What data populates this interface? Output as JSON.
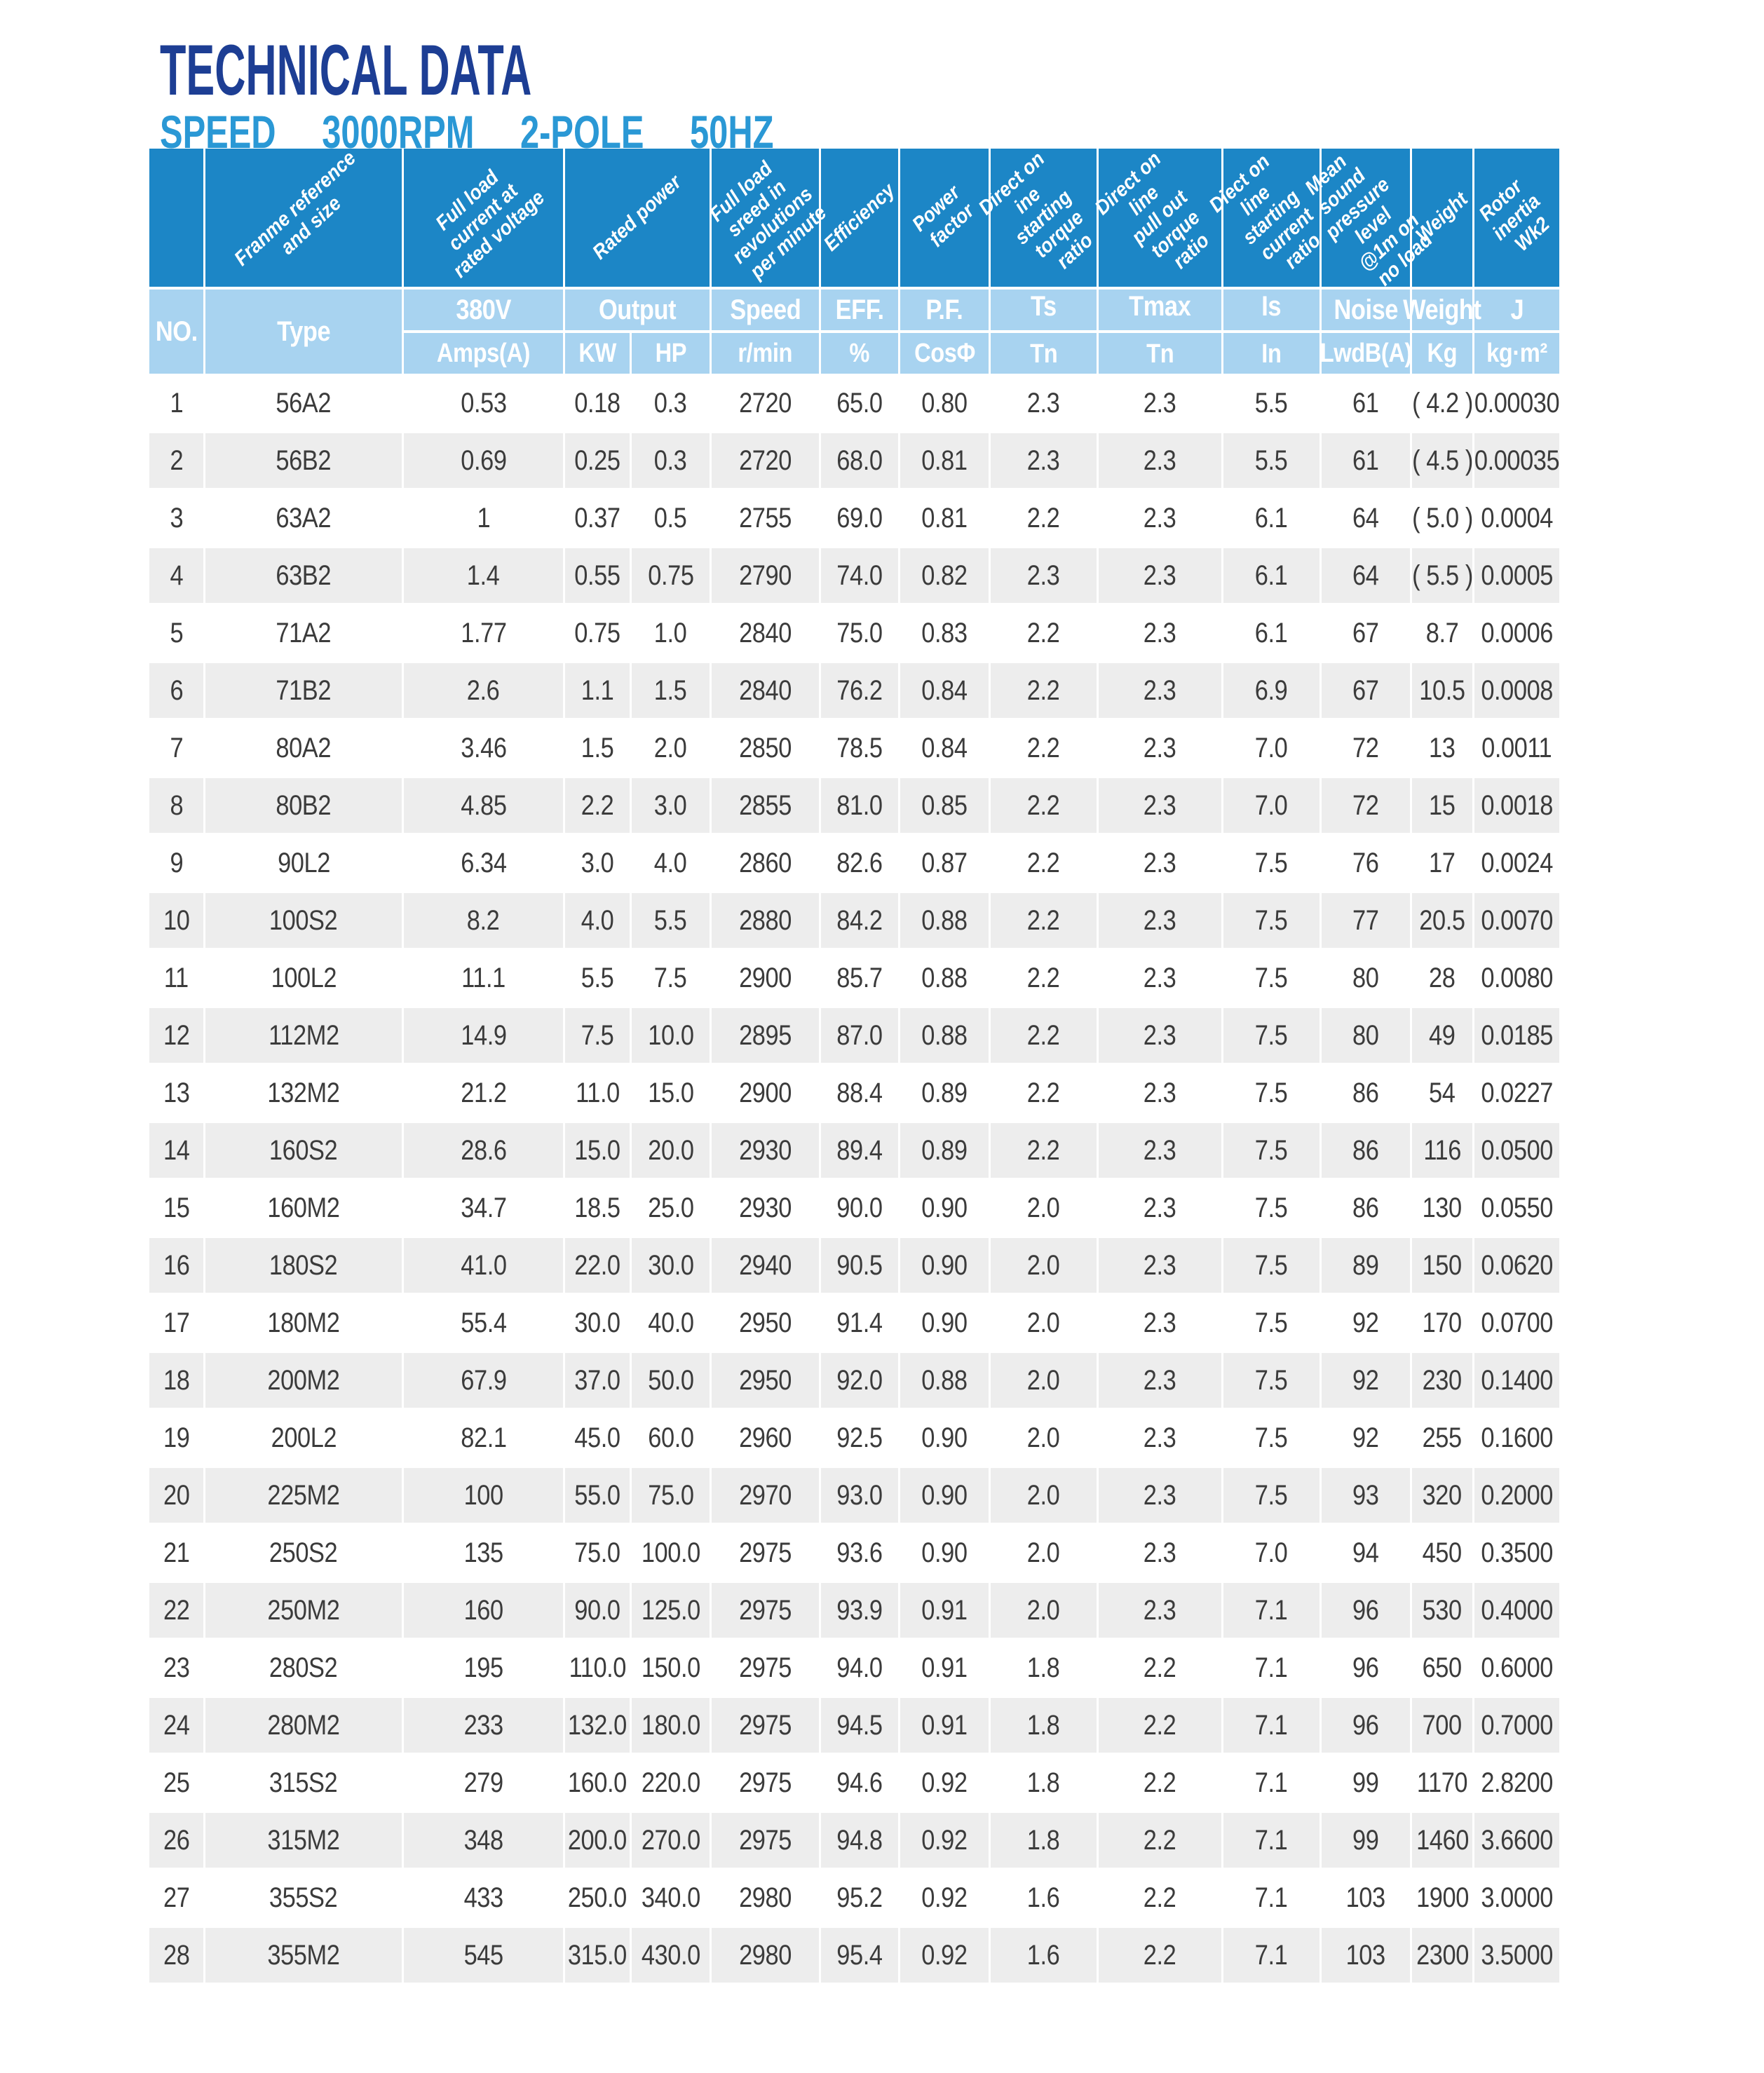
{
  "title": "TECHNICAL DATA",
  "subtitle": "SPEED  3000RPM  2-POLE  50HZ",
  "colors": {
    "header_dark_blue": "#1c86c6",
    "header_light_blue": "#a8d3f0",
    "row_alt_gray": "#ededed",
    "title_navy": "#1d3e94",
    "subtitle_blue": "#2a98d5"
  },
  "table": {
    "diagonal_headers": {
      "type": "Franme reference\nand size",
      "amps": "Full load current at\nrated voltage",
      "output": "Rated power",
      "speed": "Full load sreed in\nrevolutions\nper minute",
      "eff": "Efficiency",
      "pf": "Power factor",
      "ts": "Direct on ine\nstarting torque\nratio",
      "tmax": "Direct on line\npull out torque\nratio",
      "is": "Diect on line\nstarting current\nratio",
      "noise": "Mean sound\npressure\nlevel @1m on\nno load",
      "weight": "Weight",
      "j": "Rotor inertia Wk2"
    },
    "subheaders": {
      "no": "NO.",
      "type": "Type",
      "v380": "380V",
      "amps_unit": "Amps(A)",
      "output": "Output",
      "kw": "KW",
      "hp": "HP",
      "speed": "Speed",
      "speed_unit": "r/min",
      "eff": "EFF.",
      "eff_unit": "%",
      "pf": "P.F.",
      "pf_unit": "CosΦ",
      "ts": "Ts",
      "ts_unit": "Tn",
      "tmax": "Tmax",
      "tmax_unit": "Tn",
      "is": "Is",
      "is_unit": "In",
      "noise": "Noise",
      "noise_unit": "LwdB(A)",
      "weight": "Weight",
      "weight_unit": "Kg",
      "j": "J",
      "j_unit": "kg·m²"
    },
    "column_keys": [
      "no",
      "type",
      "amps",
      "kw",
      "hp",
      "speed",
      "eff",
      "pf",
      "ts",
      "tmax",
      "is",
      "noise",
      "weight",
      "j"
    ],
    "rows": [
      [
        "1",
        "56A2",
        "0.53",
        "0.18",
        "0.3",
        "2720",
        "65.0",
        "0.80",
        "2.3",
        "2.3",
        "5.5",
        "61",
        "( 4.2 )",
        "0.00030"
      ],
      [
        "2",
        "56B2",
        "0.69",
        "0.25",
        "0.3",
        "2720",
        "68.0",
        "0.81",
        "2.3",
        "2.3",
        "5.5",
        "61",
        "( 4.5 )",
        "0.00035"
      ],
      [
        "3",
        "63A2",
        "1",
        "0.37",
        "0.5",
        "2755",
        "69.0",
        "0.81",
        "2.2",
        "2.3",
        "6.1",
        "64",
        "( 5.0 )",
        "0.0004"
      ],
      [
        "4",
        "63B2",
        "1.4",
        "0.55",
        "0.75",
        "2790",
        "74.0",
        "0.82",
        "2.3",
        "2.3",
        "6.1",
        "64",
        "( 5.5 )",
        "0.0005"
      ],
      [
        "5",
        "71A2",
        "1.77",
        "0.75",
        "1.0",
        "2840",
        "75.0",
        "0.83",
        "2.2",
        "2.3",
        "6.1",
        "67",
        "8.7",
        "0.0006"
      ],
      [
        "6",
        "71B2",
        "2.6",
        "1.1",
        "1.5",
        "2840",
        "76.2",
        "0.84",
        "2.2",
        "2.3",
        "6.9",
        "67",
        "10.5",
        "0.0008"
      ],
      [
        "7",
        "80A2",
        "3.46",
        "1.5",
        "2.0",
        "2850",
        "78.5",
        "0.84",
        "2.2",
        "2.3",
        "7.0",
        "72",
        "13",
        "0.0011"
      ],
      [
        "8",
        "80B2",
        "4.85",
        "2.2",
        "3.0",
        "2855",
        "81.0",
        "0.85",
        "2.2",
        "2.3",
        "7.0",
        "72",
        "15",
        "0.0018"
      ],
      [
        "9",
        "90L2",
        "6.34",
        "3.0",
        "4.0",
        "2860",
        "82.6",
        "0.87",
        "2.2",
        "2.3",
        "7.5",
        "76",
        "17",
        "0.0024"
      ],
      [
        "10",
        "100S2",
        "8.2",
        "4.0",
        "5.5",
        "2880",
        "84.2",
        "0.88",
        "2.2",
        "2.3",
        "7.5",
        "77",
        "20.5",
        "0.0070"
      ],
      [
        "11",
        "100L2",
        "11.1",
        "5.5",
        "7.5",
        "2900",
        "85.7",
        "0.88",
        "2.2",
        "2.3",
        "7.5",
        "80",
        "28",
        "0.0080"
      ],
      [
        "12",
        "112M2",
        "14.9",
        "7.5",
        "10.0",
        "2895",
        "87.0",
        "0.88",
        "2.2",
        "2.3",
        "7.5",
        "80",
        "49",
        "0.0185"
      ],
      [
        "13",
        "132M2",
        "21.2",
        "11.0",
        "15.0",
        "2900",
        "88.4",
        "0.89",
        "2.2",
        "2.3",
        "7.5",
        "86",
        "54",
        "0.0227"
      ],
      [
        "14",
        "160S2",
        "28.6",
        "15.0",
        "20.0",
        "2930",
        "89.4",
        "0.89",
        "2.2",
        "2.3",
        "7.5",
        "86",
        "116",
        "0.0500"
      ],
      [
        "15",
        "160M2",
        "34.7",
        "18.5",
        "25.0",
        "2930",
        "90.0",
        "0.90",
        "2.0",
        "2.3",
        "7.5",
        "86",
        "130",
        "0.0550"
      ],
      [
        "16",
        "180S2",
        "41.0",
        "22.0",
        "30.0",
        "2940",
        "90.5",
        "0.90",
        "2.0",
        "2.3",
        "7.5",
        "89",
        "150",
        "0.0620"
      ],
      [
        "17",
        "180M2",
        "55.4",
        "30.0",
        "40.0",
        "2950",
        "91.4",
        "0.90",
        "2.0",
        "2.3",
        "7.5",
        "92",
        "170",
        "0.0700"
      ],
      [
        "18",
        "200M2",
        "67.9",
        "37.0",
        "50.0",
        "2950",
        "92.0",
        "0.88",
        "2.0",
        "2.3",
        "7.5",
        "92",
        "230",
        "0.1400"
      ],
      [
        "19",
        "200L2",
        "82.1",
        "45.0",
        "60.0",
        "2960",
        "92.5",
        "0.90",
        "2.0",
        "2.3",
        "7.5",
        "92",
        "255",
        "0.1600"
      ],
      [
        "20",
        "225M2",
        "100",
        "55.0",
        "75.0",
        "2970",
        "93.0",
        "0.90",
        "2.0",
        "2.3",
        "7.5",
        "93",
        "320",
        "0.2000"
      ],
      [
        "21",
        "250S2",
        "135",
        "75.0",
        "100.0",
        "2975",
        "93.6",
        "0.90",
        "2.0",
        "2.3",
        "7.0",
        "94",
        "450",
        "0.3500"
      ],
      [
        "22",
        "250M2",
        "160",
        "90.0",
        "125.0",
        "2975",
        "93.9",
        "0.91",
        "2.0",
        "2.3",
        "7.1",
        "96",
        "530",
        "0.4000"
      ],
      [
        "23",
        "280S2",
        "195",
        "110.0",
        "150.0",
        "2975",
        "94.0",
        "0.91",
        "1.8",
        "2.2",
        "7.1",
        "96",
        "650",
        "0.6000"
      ],
      [
        "24",
        "280M2",
        "233",
        "132.0",
        "180.0",
        "2975",
        "94.5",
        "0.91",
        "1.8",
        "2.2",
        "7.1",
        "96",
        "700",
        "0.7000"
      ],
      [
        "25",
        "315S2",
        "279",
        "160.0",
        "220.0",
        "2975",
        "94.6",
        "0.92",
        "1.8",
        "2.2",
        "7.1",
        "99",
        "1170",
        "2.8200"
      ],
      [
        "26",
        "315M2",
        "348",
        "200.0",
        "270.0",
        "2975",
        "94.8",
        "0.92",
        "1.8",
        "2.2",
        "7.1",
        "99",
        "1460",
        "3.6600"
      ],
      [
        "27",
        "355S2",
        "433",
        "250.0",
        "340.0",
        "2980",
        "95.2",
        "0.92",
        "1.6",
        "2.2",
        "7.1",
        "103",
        "1900",
        "3.0000"
      ],
      [
        "28",
        "355M2",
        "545",
        "315.0",
        "430.0",
        "2980",
        "95.4",
        "0.92",
        "1.6",
        "2.2",
        "7.1",
        "103",
        "2300",
        "3.5000"
      ]
    ]
  }
}
